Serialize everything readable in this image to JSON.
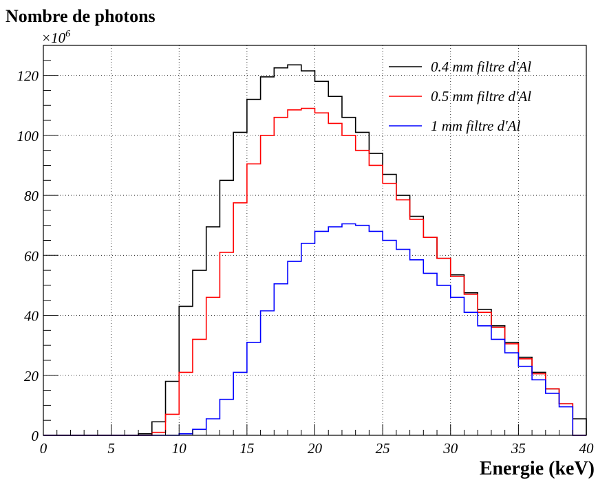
{
  "chart_data": {
    "type": "histogram-step",
    "title": "Nombre de photons",
    "xlabel": "Energie (keV)",
    "y_multiplier": "×10",
    "y_multiplier_exponent": "6",
    "xlim": [
      0,
      40
    ],
    "ylim": [
      0,
      130
    ],
    "x_ticks": [
      "0",
      "5",
      "10",
      "15",
      "20",
      "25",
      "30",
      "35",
      "40"
    ],
    "y_ticks": [
      "0",
      "20",
      "40",
      "60",
      "80",
      "100",
      "120"
    ],
    "grid": true,
    "legend_position": "top-right",
    "bin_width": 1,
    "bin_start": 0,
    "series": [
      {
        "name": "0.4 mm filtre d'Al",
        "color": "#000000",
        "values": [
          0,
          0,
          0,
          0,
          0,
          0,
          0,
          0.5,
          4.5,
          18,
          43,
          55,
          69.5,
          85,
          101,
          112,
          119.5,
          122.5,
          123.5,
          121.5,
          118,
          113,
          106,
          101,
          94,
          87,
          80,
          73,
          66,
          59,
          53.5,
          47.5,
          42,
          36.5,
          31,
          26,
          21,
          15.5,
          10.5,
          5.5
        ]
      },
      {
        "name": "0.5 mm filtre d'Al",
        "color": "#ff0000",
        "values": [
          0,
          0,
          0,
          0,
          0,
          0,
          0,
          0,
          1,
          7,
          21,
          32,
          46,
          61,
          77.5,
          90.5,
          100,
          106,
          108.5,
          109,
          107.5,
          104,
          100,
          95,
          90,
          84,
          78.5,
          72,
          66,
          59,
          53,
          47,
          41,
          36,
          30.5,
          25.5,
          20.5,
          15.5,
          10.5,
          0
        ]
      },
      {
        "name": "1 mm filtre d'Al",
        "color": "#0000ff",
        "values": [
          0,
          0,
          0,
          0,
          0,
          0,
          0,
          0,
          0,
          0,
          0.5,
          2,
          5.5,
          12,
          21,
          31,
          41.5,
          50.5,
          58,
          64,
          68,
          69.5,
          70.5,
          70,
          68,
          65,
          62,
          58.5,
          54,
          50,
          46,
          41,
          36.5,
          32,
          27.5,
          23,
          18.5,
          14,
          9.5,
          0
        ]
      }
    ]
  }
}
